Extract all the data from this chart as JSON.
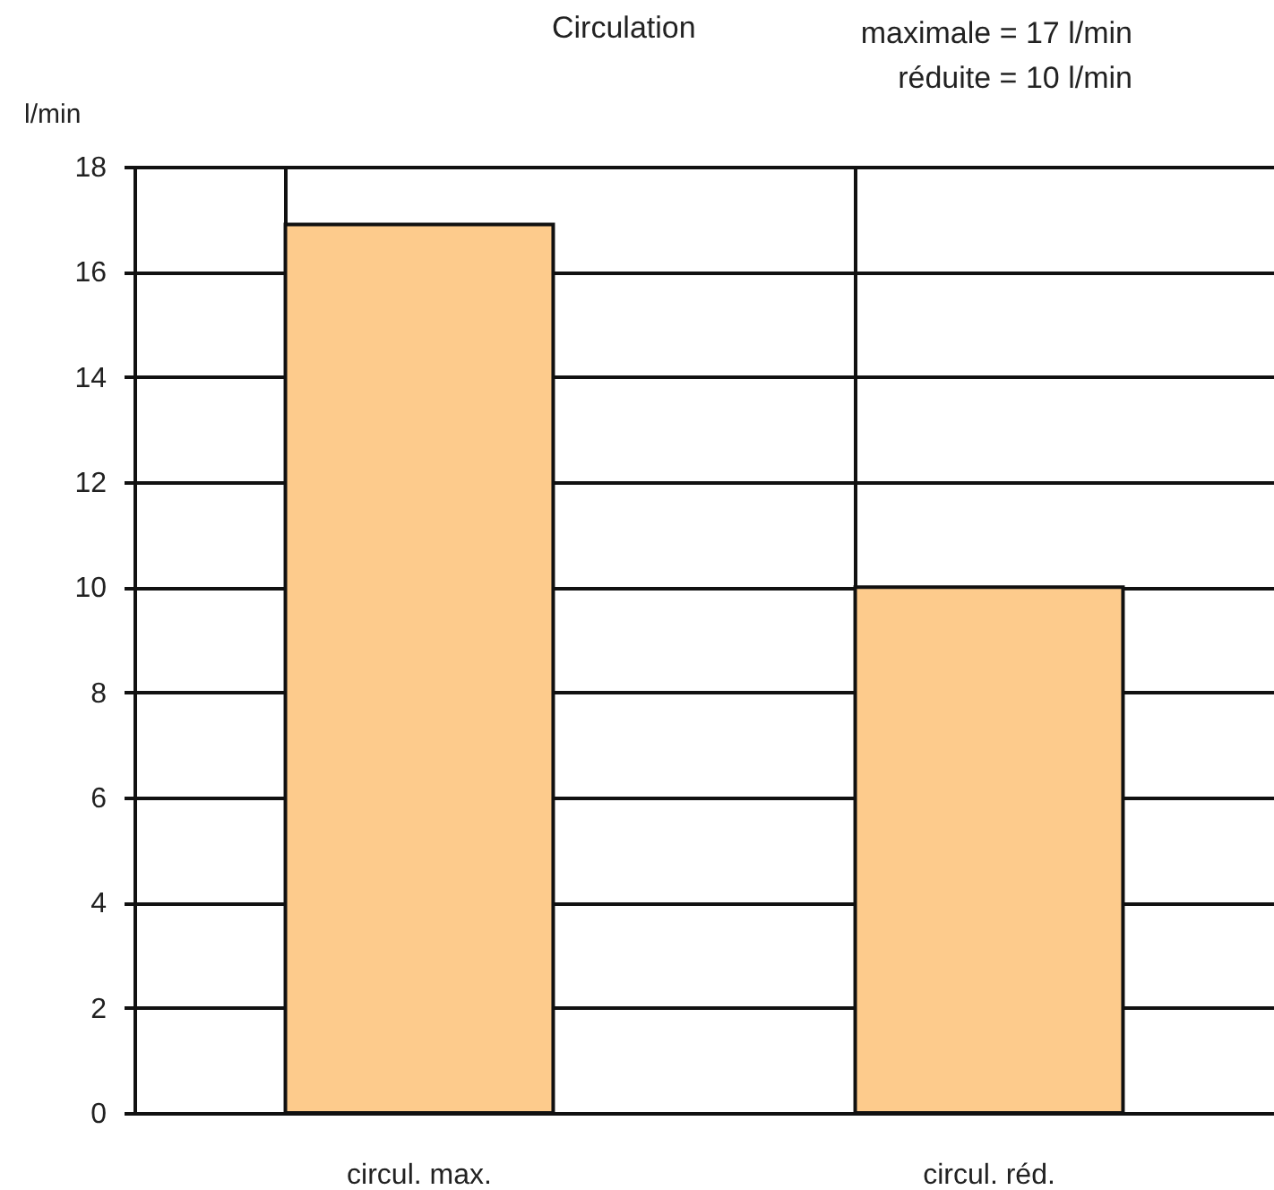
{
  "chart_data": {
    "type": "bar",
    "title": "Circulation",
    "annotations": [
      "maximale = 17 l/min",
      "réduite = 10 l/min"
    ],
    "ylabel": "l/min",
    "categories": [
      "circul. max.",
      "circul. réd."
    ],
    "values": [
      16.9,
      10
    ],
    "color": "#fdcb8c",
    "ylim": [
      0,
      18
    ],
    "yticks": [
      0,
      2,
      4,
      6,
      8,
      10,
      12,
      14,
      16,
      18
    ],
    "grid": true
  }
}
